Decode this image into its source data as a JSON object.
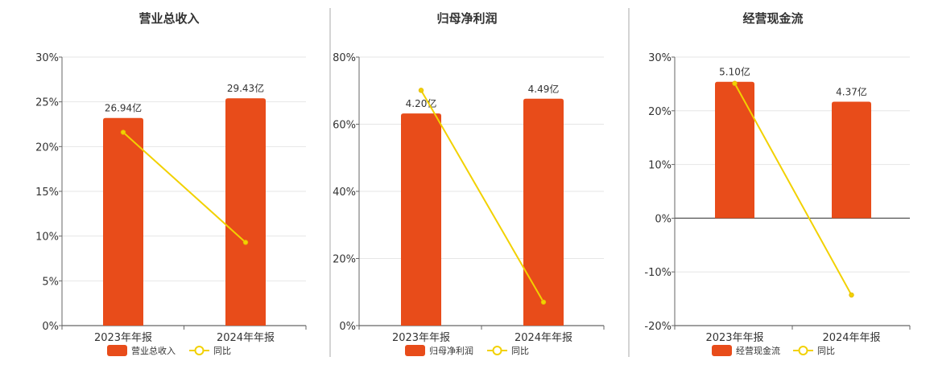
{
  "colors": {
    "bar": "#E84C1A",
    "line": "#F2D100",
    "grid": "#E6E6E6",
    "axis": "#666666",
    "divider": "#AAAAAA"
  },
  "chart_data": [
    {
      "type": "bar",
      "title": "营业总收入",
      "categories": [
        "2023年年报",
        "2024年年报"
      ],
      "ylim": [
        0,
        30
      ],
      "yticks": [
        "0%",
        "5%",
        "10%",
        "15%",
        "20%",
        "25%",
        "30%"
      ],
      "series": [
        {
          "name": "营业总收入",
          "type": "bar",
          "values": [
            23.2,
            25.4
          ],
          "labels": [
            "26.94亿",
            "29.43亿"
          ]
        },
        {
          "name": "同比",
          "type": "line",
          "values": [
            21.6,
            9.3
          ]
        }
      ],
      "grid": true,
      "legend": "bottom"
    },
    {
      "type": "bar",
      "title": "归母净利润",
      "categories": [
        "2023年年报",
        "2024年年报"
      ],
      "ylim": [
        0,
        80
      ],
      "yticks": [
        "0%",
        "20%",
        "40%",
        "60%",
        "80%"
      ],
      "series": [
        {
          "name": "归母净利润",
          "type": "bar",
          "values": [
            63.2,
            67.6
          ],
          "labels": [
            "4.20亿",
            "4.49亿"
          ]
        },
        {
          "name": "同比",
          "type": "line",
          "values": [
            70.1,
            7.0
          ]
        }
      ],
      "grid": true,
      "legend": "bottom"
    },
    {
      "type": "bar",
      "title": "经营现金流",
      "categories": [
        "2023年年报",
        "2024年年报"
      ],
      "ylim": [
        -20,
        30
      ],
      "yticks": [
        "-20%",
        "-10%",
        "0%",
        "10%",
        "20%",
        "30%"
      ],
      "series": [
        {
          "name": "经营现金流",
          "type": "bar",
          "values": [
            25.4,
            21.7
          ],
          "labels": [
            "5.10亿",
            "4.37亿"
          ]
        },
        {
          "name": "同比",
          "type": "line",
          "values": [
            25.1,
            -14.3
          ]
        }
      ],
      "grid": true,
      "legend": "bottom"
    }
  ]
}
